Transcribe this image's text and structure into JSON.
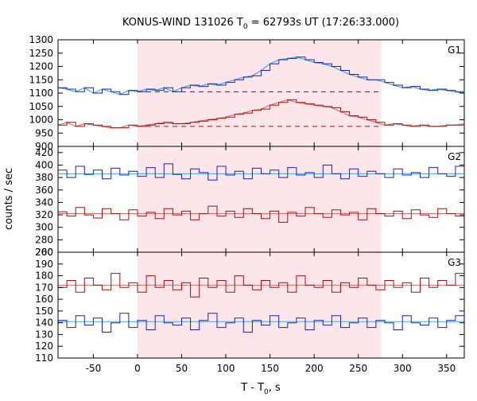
{
  "chart_data": {
    "type": "line",
    "title_main": "KONUS-WIND 131026 T",
    "title_sub": "0",
    "title_rest": " = 62793s UT (17:26:33.000)",
    "xlabel_main": "T - T",
    "xlabel_sub": "0",
    "xlabel_rest": ", s",
    "ylabel": "counts / sec",
    "xlim": [
      -90,
      370
    ],
    "x_ticks": [
      -50,
      0,
      50,
      100,
      150,
      200,
      250,
      300,
      350
    ],
    "highlight_interval": [
      0,
      276
    ],
    "colors": {
      "upper_series": "#2020b0",
      "lower_series": "#a01010",
      "fit_upper": "#40a8e0",
      "fit_lower": "#e07070",
      "highlight": "#fde6e9"
    },
    "panels": [
      {
        "label": "G1",
        "ylim": [
          900,
          1300
        ],
        "y_ticks": [
          900,
          950,
          1000,
          1050,
          1100,
          1150,
          1200,
          1250,
          1300
        ],
        "series": [
          {
            "role": "upper",
            "x": [
              -90,
              -80,
              -70,
              -60,
              -50,
              -40,
              -30,
              -20,
              -10,
              0,
              10,
              20,
              30,
              40,
              50,
              60,
              70,
              80,
              90,
              100,
              110,
              120,
              130,
              140,
              150,
              160,
              170,
              180,
              190,
              200,
              210,
              220,
              230,
              240,
              250,
              260,
              270,
              280,
              290,
              300,
              310,
              320,
              330,
              340,
              350,
              360,
              370
            ],
            "y": [
              1120,
              1115,
              1105,
              1120,
              1100,
              1115,
              1105,
              1095,
              1110,
              1105,
              1115,
              1110,
              1120,
              1105,
              1120,
              1130,
              1125,
              1135,
              1130,
              1140,
              1150,
              1160,
              1165,
              1185,
              1210,
              1225,
              1230,
              1235,
              1225,
              1215,
              1210,
              1200,
              1185,
              1170,
              1160,
              1150,
              1150,
              1140,
              1130,
              1120,
              1125,
              1115,
              1110,
              1115,
              1110,
              1105,
              1100
            ],
            "baseline": 1105
          },
          {
            "role": "lower",
            "x": [
              -90,
              -80,
              -70,
              -60,
              -50,
              -40,
              -30,
              -20,
              -10,
              0,
              10,
              20,
              30,
              40,
              50,
              60,
              70,
              80,
              90,
              100,
              110,
              120,
              130,
              140,
              150,
              160,
              170,
              180,
              190,
              200,
              210,
              220,
              230,
              240,
              250,
              260,
              270,
              280,
              290,
              300,
              310,
              320,
              330,
              340,
              350,
              360,
              370
            ],
            "y": [
              980,
              990,
              975,
              985,
              980,
              975,
              970,
              970,
              980,
              975,
              980,
              985,
              990,
              985,
              985,
              990,
              995,
              1000,
              1005,
              1010,
              1020,
              1025,
              1035,
              1040,
              1055,
              1065,
              1075,
              1065,
              1060,
              1055,
              1050,
              1045,
              1030,
              1015,
              1010,
              1000,
              990,
              980,
              985,
              980,
              975,
              980,
              975,
              975,
              980,
              980,
              985
            ],
            "baseline": 975
          }
        ]
      },
      {
        "label": "G2",
        "ylim": [
          260,
          430
        ],
        "y_ticks": [
          260,
          280,
          300,
          320,
          340,
          360,
          380,
          400,
          420
        ],
        "series": [
          {
            "role": "upper",
            "mean": 386,
            "x": [
              -90,
              -80,
              -70,
              -60,
              -50,
              -40,
              -30,
              -20,
              -10,
              0,
              10,
              20,
              30,
              40,
              50,
              60,
              70,
              80,
              90,
              100,
              110,
              120,
              130,
              140,
              150,
              160,
              170,
              180,
              190,
              200,
              210,
              220,
              230,
              240,
              250,
              260,
              270,
              280,
              290,
              300,
              310,
              320,
              330,
              340,
              350,
              360,
              370
            ],
            "y": [
              392,
              380,
              398,
              385,
              392,
              378,
              395,
              384,
              390,
              382,
              396,
              380,
              402,
              385,
              378,
              394,
              388,
              376,
              398,
              384,
              390,
              378,
              395,
              386,
              392,
              380,
              396,
              384,
              388,
              380,
              400,
              386,
              378,
              394,
              382,
              390,
              386,
              380,
              394,
              384,
              388,
              380,
              396,
              386,
              382,
              398,
              388
            ]
          },
          {
            "role": "lower",
            "mean": 322,
            "x": [
              -90,
              -80,
              -70,
              -60,
              -50,
              -40,
              -30,
              -20,
              -10,
              0,
              10,
              20,
              30,
              40,
              50,
              60,
              70,
              80,
              90,
              100,
              110,
              120,
              130,
              140,
              150,
              160,
              170,
              180,
              190,
              200,
              210,
              220,
              230,
              240,
              250,
              260,
              270,
              280,
              290,
              300,
              310,
              320,
              330,
              340,
              350,
              360,
              370
            ],
            "y": [
              325,
              318,
              332,
              320,
              315,
              330,
              322,
              312,
              328,
              318,
              324,
              314,
              330,
              320,
              326,
              312,
              322,
              334,
              318,
              326,
              316,
              330,
              322,
              314,
              326,
              308,
              324,
              318,
              332,
              322,
              316,
              328,
              320,
              324,
              312,
              330,
              322,
              318,
              326,
              314,
              328,
              320,
              316,
              330,
              322,
              318,
              326
            ]
          }
        ]
      },
      {
        "label": "G3",
        "ylim": [
          110,
          200
        ],
        "y_ticks": [
          110,
          120,
          130,
          140,
          150,
          160,
          170,
          180,
          190,
          200
        ],
        "series": [
          {
            "role": "lower",
            "mean": 172,
            "x": [
              -90,
              -80,
              -70,
              -60,
              -50,
              -40,
              -30,
              -20,
              -10,
              0,
              10,
              20,
              30,
              40,
              50,
              60,
              70,
              80,
              90,
              100,
              110,
              120,
              130,
              140,
              150,
              160,
              170,
              180,
              190,
              200,
              210,
              220,
              230,
              240,
              250,
              260,
              270,
              280,
              290,
              300,
              310,
              320,
              330,
              340,
              350,
              360,
              370
            ],
            "y": [
              170,
              176,
              166,
              178,
              172,
              168,
              182,
              170,
              174,
              166,
              180,
              170,
              176,
              168,
              174,
              162,
              178,
              170,
              176,
              166,
              180,
              172,
              168,
              176,
              170,
              174,
              166,
              180,
              172,
              170,
              176,
              166,
              174,
              170,
              178,
              172,
              168,
              176,
              170,
              174,
              166,
              178,
              170,
              176,
              172,
              182,
              170
            ]
          },
          {
            "role": "upper",
            "mean": 141,
            "x": [
              -90,
              -80,
              -70,
              -60,
              -50,
              -40,
              -30,
              -20,
              -10,
              0,
              10,
              20,
              30,
              40,
              50,
              60,
              70,
              80,
              90,
              100,
              110,
              120,
              130,
              140,
              150,
              160,
              170,
              180,
              190,
              200,
              210,
              220,
              230,
              240,
              250,
              260,
              270,
              280,
              290,
              300,
              310,
              320,
              330,
              340,
              350,
              360,
              370
            ],
            "y": [
              142,
              136,
              146,
              138,
              144,
              132,
              140,
              148,
              136,
              142,
              134,
              146,
              140,
              138,
              144,
              134,
              142,
              148,
              136,
              140,
              144,
              132,
              142,
              138,
              146,
              136,
              140,
              144,
              134,
              142,
              138,
              146,
              136,
              140,
              144,
              136,
              142,
              140,
              134,
              146,
              140,
              138,
              144,
              136,
              142,
              146,
              140
            ]
          }
        ]
      }
    ]
  }
}
